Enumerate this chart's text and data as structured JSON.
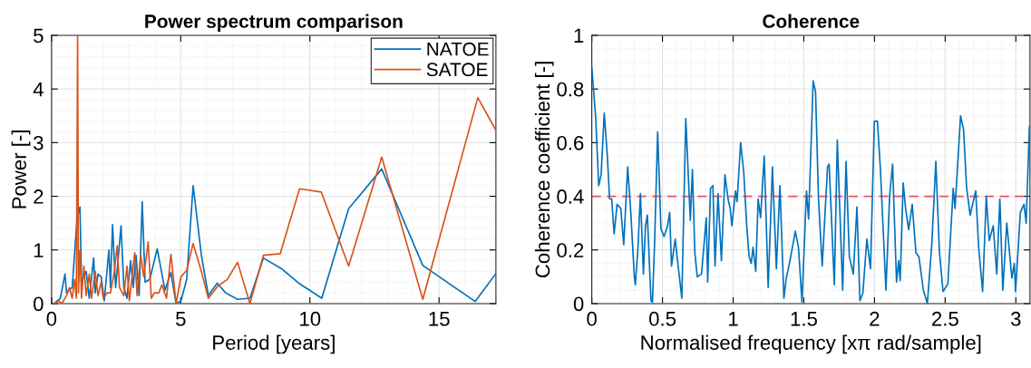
{
  "chart_data": [
    {
      "type": "line",
      "title": "Power spectrum comparison",
      "xlabel": "Period [years]",
      "ylabel": "Power [-]",
      "xlim": [
        0,
        17.2
      ],
      "xticks": [
        0,
        5,
        10,
        15
      ],
      "ylim": [
        0,
        5
      ],
      "yticks": [
        0,
        1,
        2,
        3,
        4,
        5
      ],
      "grid": true,
      "legend": "top right",
      "series": [
        {
          "name": "NATOE",
          "color": "#0072bd",
          "x": [
            0.1,
            0.34,
            0.52,
            0.58,
            0.8,
            0.99,
            1.1,
            1.16,
            1.34,
            1.46,
            1.63,
            1.69,
            1.8,
            1.92,
            2.04,
            2.22,
            2.28,
            2.36,
            2.48,
            2.69,
            2.8,
            2.92,
            3.06,
            3.16,
            3.27,
            3.39,
            3.51,
            3.62,
            3.8,
            4.09,
            4.39,
            4.62,
            4.82,
            5.01,
            5.23,
            5.48,
            5.8,
            6.07,
            6.41,
            6.74,
            7.2,
            7.68,
            8.2,
            8.9,
            9.6,
            10.46,
            11.5,
            12.78,
            14.37,
            16.4,
            17.2
          ],
          "values": [
            0.0,
            0.1,
            0.55,
            0.2,
            0.3,
            1.6,
            1.8,
            0.4,
            0.6,
            0.1,
            0.85,
            0.2,
            0.55,
            0.5,
            0.05,
            1.0,
            0.3,
            1.47,
            0.3,
            1.45,
            0.3,
            0.1,
            0.8,
            0.3,
            0.9,
            0.15,
            1.9,
            0.4,
            0.45,
            1.02,
            0.25,
            0.58,
            0.0,
            0.05,
            0.45,
            2.2,
            0.9,
            0.15,
            0.38,
            0.2,
            0.08,
            0.1,
            0.85,
            0.65,
            0.37,
            0.1,
            1.77,
            2.51,
            0.71,
            0.04,
            0.56
          ]
        },
        {
          "name": "SATOE",
          "color": "#d95319",
          "x": [
            0.1,
            0.28,
            0.4,
            0.58,
            0.69,
            0.8,
            0.89,
            0.96,
            1.01,
            1.04,
            1.1,
            1.16,
            1.25,
            1.34,
            1.46,
            1.55,
            1.69,
            1.8,
            1.92,
            2.0,
            2.16,
            2.28,
            2.43,
            2.54,
            2.63,
            2.8,
            2.92,
            3.01,
            3.22,
            3.31,
            3.45,
            3.57,
            3.74,
            3.86,
            3.98,
            4.15,
            4.27,
            4.45,
            4.62,
            4.82,
            5.01,
            5.23,
            5.48,
            5.8,
            6.07,
            6.44,
            6.8,
            7.2,
            7.68,
            8.2,
            8.85,
            9.6,
            10.44,
            11.5,
            12.78,
            14.37,
            16.5,
            17.2
          ],
          "values": [
            0.0,
            0.05,
            0.0,
            0.15,
            0.3,
            0.1,
            0.45,
            0.1,
            5.0,
            0.2,
            1.0,
            0.1,
            0.7,
            0.15,
            0.55,
            0.1,
            0.6,
            0.15,
            0.4,
            0.1,
            0.2,
            0.2,
            0.6,
            1.08,
            0.3,
            0.15,
            0.7,
            0.05,
            0.95,
            0.15,
            0.9,
            0.5,
            1.15,
            0.1,
            0.2,
            0.2,
            0.35,
            0.1,
            0.92,
            0.0,
            0.5,
            0.62,
            1.12,
            0.6,
            0.1,
            0.33,
            0.45,
            0.77,
            0.0,
            0.9,
            0.93,
            2.14,
            2.08,
            0.7,
            2.73,
            0.08,
            3.84,
            3.23
          ]
        }
      ]
    },
    {
      "type": "line",
      "title": "Coherence",
      "xlabel": "Normalised frequency [xπ rad/sample]",
      "ylabel": "Coherence coefficient [-]",
      "xlim": [
        0,
        3.1
      ],
      "xticks": [
        0,
        0.5,
        1,
        1.5,
        2,
        2.5,
        3
      ],
      "ylim": [
        0,
        1
      ],
      "yticks": [
        0,
        0.2,
        0.4,
        0.6,
        0.8,
        1
      ],
      "grid": true,
      "ref_lines": [
        {
          "axis": "y",
          "value": 0.4,
          "color": "#f0505a",
          "line_style": "dashed"
        }
      ],
      "series": [
        {
          "color": "#0072bd",
          "x": [
            0,
            0.028,
            0.049,
            0.066,
            0.088,
            0.109,
            0.126,
            0.141,
            0.158,
            0.179,
            0.205,
            0.226,
            0.254,
            0.276,
            0.301,
            0.308,
            0.327,
            0.344,
            0.365,
            0.38,
            0.393,
            0.419,
            0.429,
            0.444,
            0.466,
            0.489,
            0.511,
            0.536,
            0.551,
            0.564,
            0.59,
            0.611,
            0.637,
            0.665,
            0.697,
            0.712,
            0.729,
            0.746,
            0.776,
            0.81,
            0.82,
            0.84,
            0.857,
            0.872,
            0.893,
            0.917,
            0.942,
            0.964,
            0.979,
            0.991,
            1.017,
            1.028,
            1.053,
            1.075,
            1.096,
            1.113,
            1.128,
            1.141,
            1.16,
            1.177,
            1.194,
            1.22,
            1.248,
            1.278,
            1.306,
            1.331,
            1.359,
            1.376,
            1.402,
            1.44,
            1.462,
            1.487,
            1.519,
            1.534,
            1.566,
            1.583,
            1.604,
            1.63,
            1.668,
            1.679,
            1.716,
            1.737,
            1.775,
            1.799,
            1.822,
            1.85,
            1.876,
            1.897,
            1.918,
            1.946,
            1.972,
            1.999,
            2.021,
            2.042,
            2.081,
            2.107,
            2.128,
            2.156,
            2.171,
            2.182,
            2.203,
            2.22,
            2.242,
            2.267,
            2.293,
            2.314,
            2.346,
            2.374,
            2.406,
            2.434,
            2.459,
            2.485,
            2.519,
            2.557,
            2.57,
            2.609,
            2.63,
            2.652,
            2.677,
            2.716,
            2.737,
            2.765,
            2.791,
            2.812,
            2.84,
            2.865,
            2.887,
            2.908,
            2.936,
            2.972,
            2.989,
            2.998,
            3.032,
            3.058,
            3.073,
            3.096
          ],
          "values": [
            0.88,
            0.69,
            0.44,
            0.48,
            0.71,
            0.56,
            0.39,
            0.39,
            0.26,
            0.37,
            0.355,
            0.22,
            0.51,
            0.34,
            0.1,
            0.07,
            0.21,
            0.41,
            0.11,
            0.29,
            0.33,
            0.01,
            0.005,
            0.22,
            0.64,
            0.28,
            0.25,
            0.29,
            0.34,
            0.14,
            0.24,
            0.14,
            0.02,
            0.69,
            0.31,
            0.5,
            0.19,
            0.1,
            0.11,
            0.32,
            0.08,
            0.43,
            0.44,
            0.14,
            0.41,
            0.16,
            0.48,
            0.39,
            0.355,
            0.29,
            0.42,
            0.38,
            0.6,
            0.49,
            0.29,
            0.175,
            0.15,
            0.21,
            0.12,
            0.39,
            0.32,
            0.55,
            0.06,
            0.51,
            0.13,
            0.44,
            0.02,
            0.095,
            0.16,
            0.27,
            0.21,
            0.006,
            0.42,
            0.315,
            0.83,
            0.79,
            0.39,
            0.14,
            0.51,
            0.52,
            0.07,
            0.61,
            0.05,
            0.53,
            0.175,
            0.11,
            0.36,
            0.011,
            0.04,
            0.24,
            0.13,
            0.68,
            0.68,
            0.5,
            0.05,
            0.4,
            0.52,
            0.08,
            0.16,
            0.085,
            0.45,
            0.355,
            0.276,
            0.37,
            0.19,
            0.175,
            0.05,
            0.0,
            0.225,
            0.53,
            0.197,
            0.045,
            0.073,
            0.43,
            0.355,
            0.7,
            0.65,
            0.43,
            0.33,
            0.42,
            0.21,
            0.045,
            0.4,
            0.235,
            0.29,
            0.11,
            0.39,
            0.05,
            0.3,
            0.095,
            0.15,
            0.045,
            0.34,
            0.37,
            0.3,
            0.66
          ]
        }
      ]
    }
  ]
}
